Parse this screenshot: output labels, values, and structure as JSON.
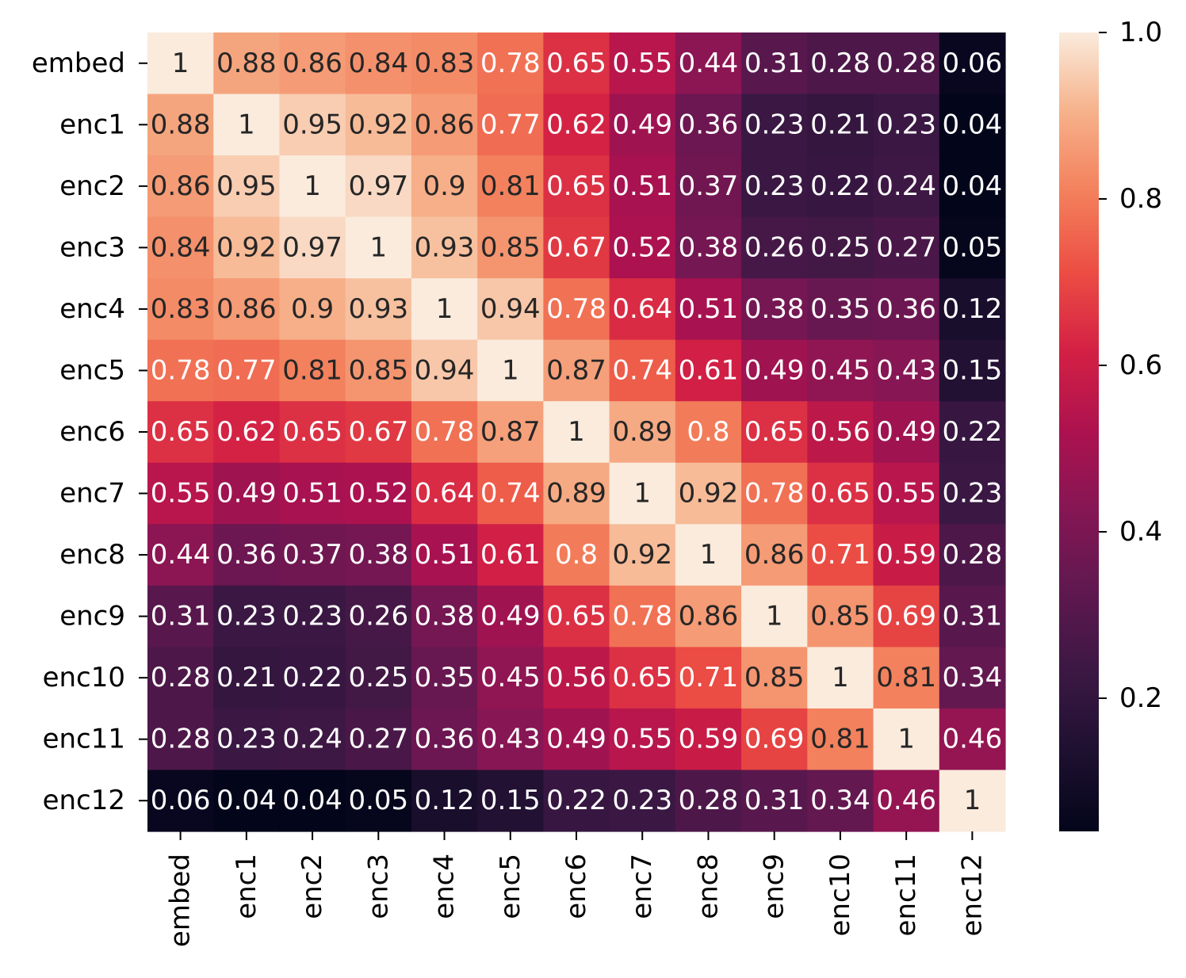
{
  "chart_data": {
    "type": "heatmap",
    "title": "",
    "xlabel": "",
    "ylabel": "",
    "x_categories": [
      "embed",
      "enc1",
      "enc2",
      "enc3",
      "enc4",
      "enc5",
      "enc6",
      "enc7",
      "enc8",
      "enc9",
      "enc10",
      "enc11",
      "enc12"
    ],
    "y_categories": [
      "embed",
      "enc1",
      "enc2",
      "enc3",
      "enc4",
      "enc5",
      "enc6",
      "enc7",
      "enc8",
      "enc9",
      "enc10",
      "enc11",
      "enc12"
    ],
    "values": [
      [
        1,
        0.88,
        0.86,
        0.84,
        0.83,
        0.78,
        0.65,
        0.55,
        0.44,
        0.31,
        0.28,
        0.28,
        0.06
      ],
      [
        0.88,
        1,
        0.95,
        0.92,
        0.86,
        0.77,
        0.62,
        0.49,
        0.36,
        0.23,
        0.21,
        0.23,
        0.04
      ],
      [
        0.86,
        0.95,
        1,
        0.97,
        0.9,
        0.81,
        0.65,
        0.51,
        0.37,
        0.23,
        0.22,
        0.24,
        0.04
      ],
      [
        0.84,
        0.92,
        0.97,
        1,
        0.93,
        0.85,
        0.67,
        0.52,
        0.38,
        0.26,
        0.25,
        0.27,
        0.05
      ],
      [
        0.83,
        0.86,
        0.9,
        0.93,
        1,
        0.94,
        0.78,
        0.64,
        0.51,
        0.38,
        0.35,
        0.36,
        0.12
      ],
      [
        0.78,
        0.77,
        0.81,
        0.85,
        0.94,
        1,
        0.87,
        0.74,
        0.61,
        0.49,
        0.45,
        0.43,
        0.15
      ],
      [
        0.65,
        0.62,
        0.65,
        0.67,
        0.78,
        0.87,
        1,
        0.89,
        0.8,
        0.65,
        0.56,
        0.49,
        0.22
      ],
      [
        0.55,
        0.49,
        0.51,
        0.52,
        0.64,
        0.74,
        0.89,
        1,
        0.92,
        0.78,
        0.65,
        0.55,
        0.23
      ],
      [
        0.44,
        0.36,
        0.37,
        0.38,
        0.51,
        0.61,
        0.8,
        0.92,
        1,
        0.86,
        0.71,
        0.59,
        0.28
      ],
      [
        0.31,
        0.23,
        0.23,
        0.26,
        0.38,
        0.49,
        0.65,
        0.78,
        0.86,
        1,
        0.85,
        0.69,
        0.31
      ],
      [
        0.28,
        0.21,
        0.22,
        0.25,
        0.35,
        0.45,
        0.56,
        0.65,
        0.71,
        0.85,
        1,
        0.81,
        0.34
      ],
      [
        0.28,
        0.23,
        0.24,
        0.27,
        0.36,
        0.43,
        0.49,
        0.55,
        0.59,
        0.69,
        0.81,
        1,
        0.46
      ],
      [
        0.06,
        0.04,
        0.04,
        0.05,
        0.12,
        0.15,
        0.22,
        0.23,
        0.28,
        0.31,
        0.34,
        0.46,
        1
      ]
    ],
    "annotations": [
      [
        "1",
        "0.88",
        "0.86",
        "0.84",
        "0.83",
        "0.78",
        "0.65",
        "0.55",
        "0.44",
        "0.31",
        "0.28",
        "0.28",
        "0.06"
      ],
      [
        "0.88",
        "1",
        "0.95",
        "0.92",
        "0.86",
        "0.77",
        "0.62",
        "0.49",
        "0.36",
        "0.23",
        "0.21",
        "0.23",
        "0.04"
      ],
      [
        "0.86",
        "0.95",
        "1",
        "0.97",
        "0.9",
        "0.81",
        "0.65",
        "0.51",
        "0.37",
        "0.23",
        "0.22",
        "0.24",
        "0.04"
      ],
      [
        "0.84",
        "0.92",
        "0.97",
        "1",
        "0.93",
        "0.85",
        "0.67",
        "0.52",
        "0.38",
        "0.26",
        "0.25",
        "0.27",
        "0.05"
      ],
      [
        "0.83",
        "0.86",
        "0.9",
        "0.93",
        "1",
        "0.94",
        "0.78",
        "0.64",
        "0.51",
        "0.38",
        "0.35",
        "0.36",
        "0.12"
      ],
      [
        "0.78",
        "0.77",
        "0.81",
        "0.85",
        "0.94",
        "1",
        "0.87",
        "0.74",
        "0.61",
        "0.49",
        "0.45",
        "0.43",
        "0.15"
      ],
      [
        "0.65",
        "0.62",
        "0.65",
        "0.67",
        "0.78",
        "0.87",
        "1",
        "0.89",
        "0.8",
        "0.65",
        "0.56",
        "0.49",
        "0.22"
      ],
      [
        "0.55",
        "0.49",
        "0.51",
        "0.52",
        "0.64",
        "0.74",
        "0.89",
        "1",
        "0.92",
        "0.78",
        "0.65",
        "0.55",
        "0.23"
      ],
      [
        "0.44",
        "0.36",
        "0.37",
        "0.38",
        "0.51",
        "0.61",
        "0.8",
        "0.92",
        "1",
        "0.86",
        "0.71",
        "0.59",
        "0.28"
      ],
      [
        "0.31",
        "0.23",
        "0.23",
        "0.26",
        "0.38",
        "0.49",
        "0.65",
        "0.78",
        "0.86",
        "1",
        "0.85",
        "0.69",
        "0.31"
      ],
      [
        "0.28",
        "0.21",
        "0.22",
        "0.25",
        "0.35",
        "0.45",
        "0.56",
        "0.65",
        "0.71",
        "0.85",
        "1",
        "0.81",
        "0.34"
      ],
      [
        "0.28",
        "0.23",
        "0.24",
        "0.27",
        "0.36",
        "0.43",
        "0.49",
        "0.55",
        "0.59",
        "0.69",
        "0.81",
        "1",
        "0.46"
      ],
      [
        "0.06",
        "0.04",
        "0.04",
        "0.05",
        "0.12",
        "0.15",
        "0.22",
        "0.23",
        "0.28",
        "0.31",
        "0.34",
        "0.46",
        "1"
      ]
    ],
    "colorbar": {
      "colormap": "rocket",
      "vmin": 0.04,
      "vmax": 1.0,
      "ticks": [
        0.2,
        0.4,
        0.6,
        0.8,
        1.0
      ],
      "tick_labels": [
        "0.2",
        "0.4",
        "0.6",
        "0.8",
        "1.0"
      ]
    },
    "grid": false,
    "legend": "colorbar-right"
  }
}
